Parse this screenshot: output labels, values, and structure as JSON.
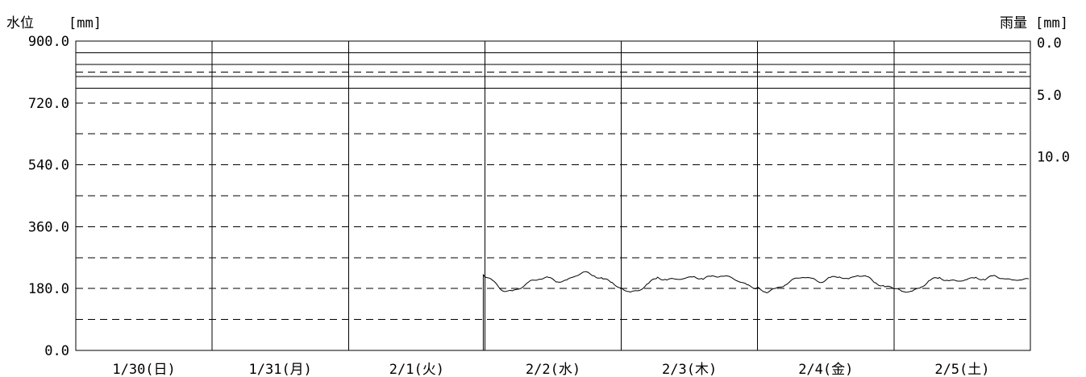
{
  "chart_data": {
    "type": "line",
    "left_axis_label": "水位",
    "left_axis_unit": "[mm]",
    "right_axis_label": "雨量",
    "right_axis_unit": "[mm]",
    "left_ticks": [
      "900.0",
      "720.0",
      "540.0",
      "360.0",
      "180.0",
      "0.0"
    ],
    "left_range": [
      0,
      900
    ],
    "right_ticks": [
      "0.0",
      "5.0",
      "10.0"
    ],
    "right_range_top_down": [
      0,
      5,
      10
    ],
    "categories": [
      "1/30(日)",
      "1/31(月)",
      "2/1(火)",
      "2/2(水)",
      "2/3(木)",
      "2/4(金)",
      "2/5(土)"
    ],
    "grid": "dashed horizontal lines every 90 mm; solid vertical lines at day boundaries",
    "series": [
      {
        "values_by_day": [
          [],
          [],
          [],
          [
            218,
            196,
            176,
            172,
            182,
            200,
            212,
            209,
            200,
            205,
            218,
            226,
            220,
            208,
            196
          ],
          [
            180,
            170,
            176,
            194,
            212,
            208,
            205,
            210,
            215,
            209,
            213,
            220,
            212,
            200,
            188
          ],
          [
            182,
            172,
            176,
            192,
            208,
            214,
            206,
            202,
            210,
            214,
            208,
            220,
            212,
            198,
            186
          ],
          [
            180,
            170,
            172,
            186,
            204,
            210,
            206,
            200,
            206,
            212,
            208,
            214,
            212,
            204,
            206
          ]
        ]
      }
    ]
  }
}
